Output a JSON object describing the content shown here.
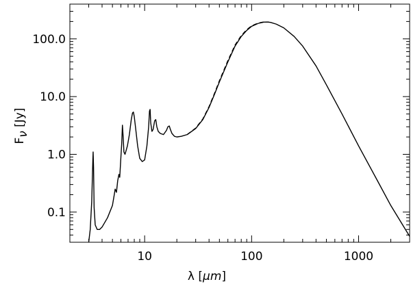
{
  "chart_data": {
    "type": "line",
    "xscale": "log",
    "yscale": "log",
    "xlim": [
      2,
      3000
    ],
    "ylim": [
      0.03,
      400
    ],
    "xlabel": "λ [μm]",
    "ylabel": "F_ν [Jy]",
    "xlabel_parts": {
      "symbol": "λ",
      "open": " [",
      "unit": "μm",
      "close": "]"
    },
    "ylabel_parts": {
      "symbol": "F",
      "subscript": "ν",
      "unit": "[Jy]"
    },
    "x_ticks": [
      {
        "value": 10,
        "label": "10"
      },
      {
        "value": 100,
        "label": "100"
      },
      {
        "value": 1000,
        "label": "1000"
      }
    ],
    "y_ticks": [
      {
        "value": 0.1,
        "label": "0.1"
      },
      {
        "value": 1,
        "label": "1.0"
      },
      {
        "value": 10,
        "label": "10.0"
      },
      {
        "value": 100,
        "label": "100.0"
      }
    ],
    "grid": false,
    "legend": "none",
    "series": [
      {
        "style": "solid",
        "color": "#000000",
        "x": [
          3.0,
          3.1,
          3.2,
          3.28,
          3.3,
          3.33,
          3.37,
          3.45,
          3.6,
          3.8,
          4.0,
          4.5,
          5.0,
          5.2,
          5.3,
          5.45,
          5.6,
          5.75,
          5.85,
          6.0,
          6.1,
          6.2,
          6.3,
          6.4,
          6.55,
          6.7,
          6.9,
          7.2,
          7.5,
          7.7,
          7.85,
          8.0,
          8.3,
          8.6,
          9.0,
          9.5,
          10.0,
          10.5,
          10.9,
          11.1,
          11.25,
          11.4,
          11.7,
          12.0,
          12.4,
          12.7,
          13.0,
          13.4,
          14.0,
          15.0,
          16.0,
          16.5,
          17.0,
          17.4,
          18.0,
          19.0,
          20.0,
          22.0,
          25.0,
          30.0,
          35.0,
          40.0,
          45.0,
          50.0,
          60.0,
          70.0,
          80.0,
          90.0,
          100.0,
          115.0,
          130.0,
          140.0,
          150.0,
          170.0,
          200.0,
          250.0,
          300.0,
          400.0,
          500.0,
          700.0,
          1000.0,
          1500.0,
          2000.0,
          3000.0
        ],
        "y": [
          0.03,
          0.05,
          0.15,
          0.8,
          1.1,
          0.6,
          0.12,
          0.06,
          0.05,
          0.05,
          0.055,
          0.08,
          0.13,
          0.2,
          0.25,
          0.22,
          0.35,
          0.45,
          0.4,
          0.9,
          1.5,
          3.2,
          2.0,
          1.1,
          1.0,
          1.15,
          1.4,
          2.2,
          4.0,
          5.2,
          5.4,
          4.5,
          2.5,
          1.4,
          0.85,
          0.75,
          0.8,
          1.4,
          3.0,
          5.6,
          6.0,
          3.5,
          2.5,
          2.7,
          3.8,
          4.0,
          3.0,
          2.5,
          2.3,
          2.2,
          2.6,
          3.0,
          3.1,
          2.7,
          2.3,
          2.05,
          2.0,
          2.05,
          2.2,
          2.8,
          4.0,
          6.5,
          11.0,
          18.0,
          40.0,
          75.0,
          110.0,
          140.0,
          165.0,
          185.0,
          195.0,
          196.0,
          193.0,
          180.0,
          155.0,
          110.0,
          75.0,
          34.0,
          16.0,
          5.0,
          1.4,
          0.35,
          0.13,
          0.038
        ]
      },
      {
        "style": "dashed",
        "color": "#000000",
        "x": [
          25.0,
          30.0,
          35.0,
          40.0,
          45.0,
          50.0,
          60.0,
          70.0,
          80.0,
          90.0,
          100.0,
          115.0,
          130.0,
          145.0
        ],
        "y": [
          2.2,
          2.85,
          4.1,
          6.7,
          11.4,
          18.8,
          42.0,
          78.0,
          114.0,
          144.0,
          168.0,
          188.0,
          196.0,
          196.0
        ]
      }
    ]
  }
}
